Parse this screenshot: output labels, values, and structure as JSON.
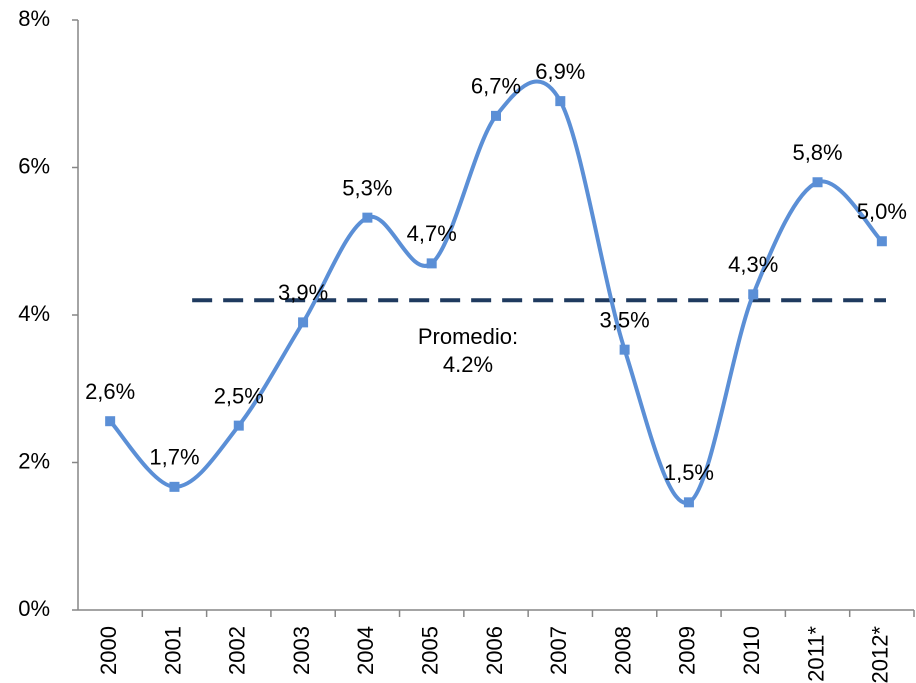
{
  "chart_data": {
    "type": "line",
    "categories": [
      "2000",
      "2001",
      "2002",
      "2003",
      "2004",
      "2005",
      "2006",
      "2007",
      "2008",
      "2009",
      "2010",
      "2011*",
      "2012*"
    ],
    "values": [
      2.56,
      1.67,
      2.5,
      3.9,
      5.32,
      4.7,
      6.7,
      6.9,
      3.53,
      1.46,
      4.28,
      5.8,
      5.0
    ],
    "value_labels": [
      "2,6%",
      "1,7%",
      "2,5%",
      "3,9%",
      "5,3%",
      "4,7%",
      "6,7%",
      "6,9%",
      "3,5%",
      "1,5%",
      "4,3%",
      "5,8%",
      "5,0%"
    ],
    "color": "#5b8fd6",
    "ylim": [
      0,
      8
    ],
    "yticks": [
      {
        "value": 0,
        "label": "0%"
      },
      {
        "value": 2,
        "label": "2%"
      },
      {
        "value": 4,
        "label": "4%"
      },
      {
        "value": 6,
        "label": "6%"
      },
      {
        "value": 8,
        "label": "8%"
      }
    ],
    "reference_line": {
      "value": 4.2,
      "color": "#1f3a5f",
      "label": [
        "Promedio:",
        "4.2%"
      ]
    },
    "grid": false
  }
}
